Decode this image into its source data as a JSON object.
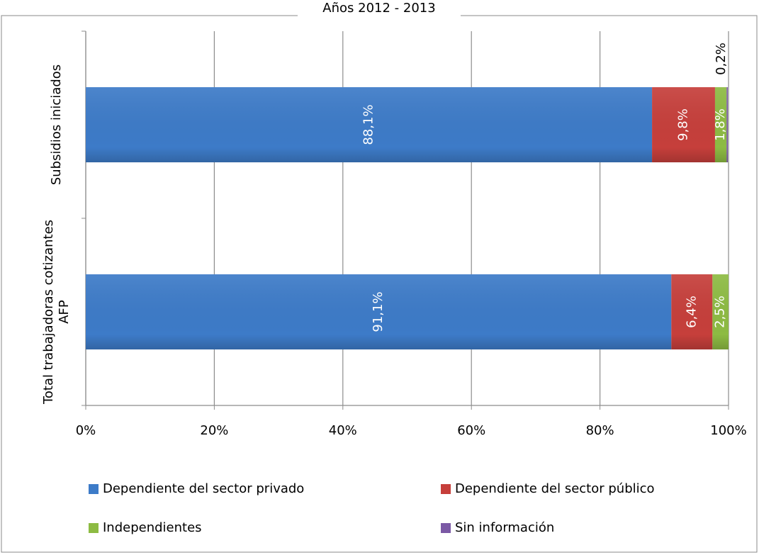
{
  "chart_data": {
    "type": "stacked-bar-horizontal",
    "title": "Años 2012 - 2013",
    "categories": [
      "Subsidios iniciados",
      "Total trabajadoras cotizantes AFP"
    ],
    "series": [
      {
        "name": "Dependiente del sector privado",
        "color": "#3d7bc8",
        "values": [
          88.1,
          91.1
        ],
        "value_labels": [
          "88,1%",
          "91,1%"
        ]
      },
      {
        "name": "Dependiente del sector público",
        "color": "#c63f3b",
        "values": [
          9.8,
          6.4
        ],
        "value_labels": [
          "9,8%",
          "6,4%"
        ]
      },
      {
        "name": "Independientes",
        "color": "#8dbb43",
        "values": [
          1.8,
          2.5
        ],
        "value_labels": [
          "1,8%",
          "2,5%"
        ]
      },
      {
        "name": "Sin información",
        "color": "#7b59a5",
        "values": [
          0.2,
          0
        ],
        "value_labels": [
          "0,2%",
          null
        ]
      }
    ],
    "xlim": [
      0,
      100
    ],
    "xticks": [
      {
        "value": 0,
        "label": "0%"
      },
      {
        "value": 20,
        "label": "20%"
      },
      {
        "value": 40,
        "label": "40%"
      },
      {
        "value": 60,
        "label": "60%"
      },
      {
        "value": 80,
        "label": "80%"
      },
      {
        "value": 100,
        "label": "100%"
      }
    ],
    "grid": true
  }
}
